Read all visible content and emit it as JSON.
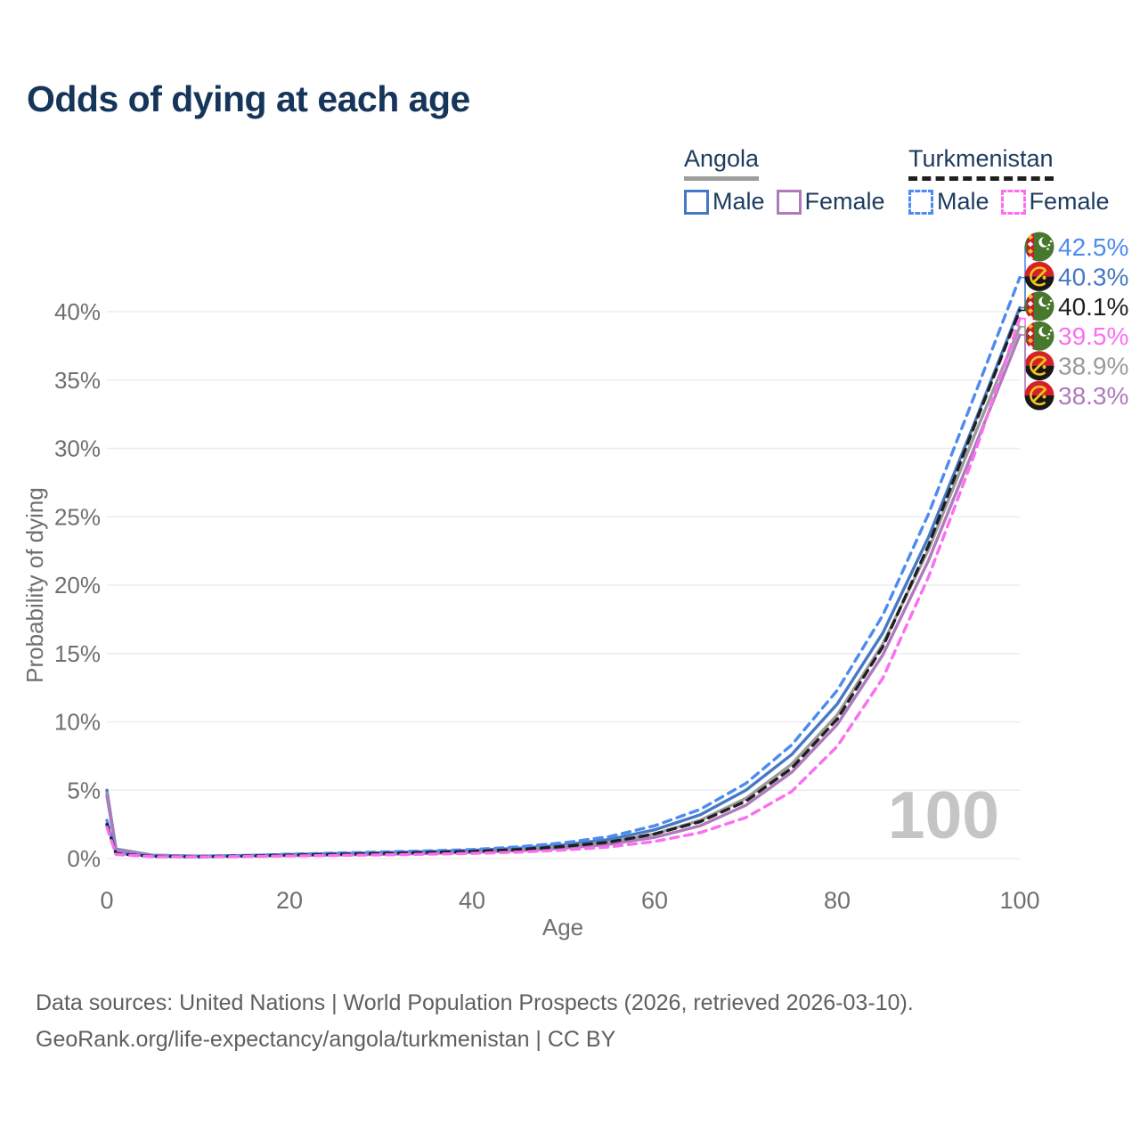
{
  "page": {
    "title": "Odds of dying at each age",
    "footer_line1": "Data sources: United Nations | World Population Prospects (2026, retrieved 2026-03-10).",
    "footer_line2": "GeoRank.org/life-expectancy/angola/turkmenistan | CC BY"
  },
  "legend": {
    "groups": [
      {
        "label": "Angola",
        "underline_style": "solid",
        "underline_color": "#9e9e9e",
        "items": [
          {
            "label": "Male",
            "color": "#4678c6",
            "style": "solid"
          },
          {
            "label": "Female",
            "color": "#ae7abc",
            "style": "solid"
          }
        ]
      },
      {
        "label": "Turkmenistan",
        "underline_style": "dashed",
        "underline_color": "#1f1f1f",
        "items": [
          {
            "label": "Male",
            "color": "#4d8bf0",
            "style": "dashed"
          },
          {
            "label": "Female",
            "color": "#fb6ef1",
            "style": "dashed"
          }
        ]
      }
    ]
  },
  "chart_data": {
    "type": "line",
    "title": "Odds of dying at each age",
    "xlabel": "Age",
    "ylabel": "Probability of dying",
    "xlim": [
      0,
      100
    ],
    "ylim": [
      0,
      44
    ],
    "x_ticks": [
      0,
      20,
      40,
      60,
      80,
      100
    ],
    "y_ticks": [
      "0%",
      "5%",
      "10%",
      "15%",
      "20%",
      "25%",
      "30%",
      "35%",
      "40%"
    ],
    "grid": "horizontal",
    "legend_position": "top-right",
    "watermark": "100",
    "x": [
      0,
      1,
      5,
      10,
      15,
      20,
      25,
      30,
      35,
      40,
      45,
      50,
      55,
      60,
      65,
      70,
      75,
      80,
      85,
      90,
      95,
      100
    ],
    "series": [
      {
        "id": "turkmenistan-male",
        "name": "Turkmenistan Male",
        "country": "turkmenistan",
        "style": "dashed",
        "color": "#4d8bf0",
        "end_label": "42.5%",
        "values": [
          2.8,
          0.4,
          0.18,
          0.15,
          0.22,
          0.32,
          0.4,
          0.48,
          0.56,
          0.66,
          0.85,
          1.15,
          1.6,
          2.4,
          3.6,
          5.5,
          8.3,
          12.3,
          17.8,
          25.2,
          33.8,
          42.5
        ]
      },
      {
        "id": "angola-male",
        "name": "Angola Male",
        "country": "angola",
        "style": "solid",
        "color": "#4678c6",
        "end_label": "40.3%",
        "values": [
          5.0,
          0.7,
          0.25,
          0.18,
          0.22,
          0.3,
          0.36,
          0.42,
          0.5,
          0.6,
          0.75,
          1.0,
          1.4,
          2.1,
          3.2,
          5.0,
          7.6,
          11.3,
          16.5,
          23.5,
          31.8,
          40.3
        ]
      },
      {
        "id": "turkmenistan-both",
        "name": "Turkmenistan",
        "country": "turkmenistan",
        "style": "dashed",
        "color": "#1f1f1f",
        "end_label": "40.1%",
        "values": [
          2.5,
          0.35,
          0.16,
          0.13,
          0.18,
          0.25,
          0.31,
          0.37,
          0.44,
          0.52,
          0.66,
          0.88,
          1.2,
          1.8,
          2.7,
          4.2,
          6.6,
          10.2,
          15.5,
          22.9,
          31.6,
          40.1
        ]
      },
      {
        "id": "turkmenistan-female",
        "name": "Turkmenistan Female",
        "country": "turkmenistan",
        "style": "dashed",
        "color": "#fb6ef1",
        "end_label": "39.5%",
        "values": [
          2.3,
          0.3,
          0.14,
          0.12,
          0.15,
          0.19,
          0.23,
          0.27,
          0.32,
          0.38,
          0.47,
          0.62,
          0.85,
          1.25,
          1.9,
          3.0,
          4.9,
          8.2,
          13.2,
          20.6,
          29.5,
          39.5
        ]
      },
      {
        "id": "angola-both",
        "name": "Angola",
        "country": "angola",
        "style": "solid",
        "color": "#9b9b9b",
        "end_label": "38.9%",
        "values": [
          4.8,
          0.65,
          0.24,
          0.16,
          0.2,
          0.26,
          0.31,
          0.37,
          0.43,
          0.52,
          0.66,
          0.87,
          1.2,
          1.8,
          2.8,
          4.4,
          6.9,
          10.5,
          15.7,
          22.6,
          30.9,
          38.9
        ]
      },
      {
        "id": "angola-female",
        "name": "Angola Female",
        "country": "angola",
        "style": "solid",
        "color": "#ae7abc",
        "end_label": "38.3%",
        "values": [
          4.6,
          0.6,
          0.22,
          0.15,
          0.18,
          0.22,
          0.26,
          0.31,
          0.37,
          0.45,
          0.57,
          0.75,
          1.05,
          1.55,
          2.4,
          3.9,
          6.3,
          9.8,
          14.9,
          21.8,
          30.0,
          38.3
        ]
      }
    ]
  }
}
